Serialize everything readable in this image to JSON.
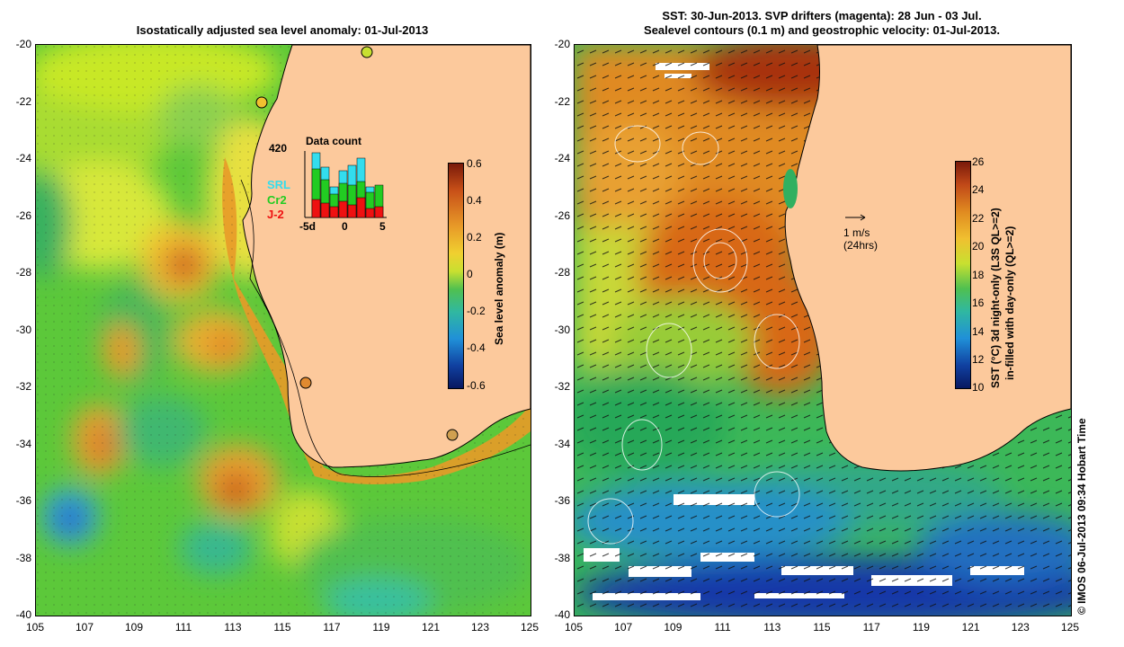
{
  "left": {
    "title": "Isostatically adjusted sea level anomaly: 01-Jul-2013",
    "colorbar": {
      "label": "Sea level anomaly (m)",
      "ticks": [
        "0.6",
        "0.4",
        "0.2",
        "0",
        "-0.2",
        "-0.4",
        "-0.6"
      ]
    },
    "inset": {
      "title": "Data count",
      "max_label": "420",
      "x_labels": [
        "-5d",
        "0",
        "5"
      ],
      "legend": [
        {
          "label": "SRL",
          "color": "#33ddee"
        },
        {
          "label": "Cr2",
          "color": "#22cc22"
        },
        {
          "label": "J-2",
          "color": "#ee1111"
        }
      ]
    }
  },
  "right": {
    "title_line1": "SST: 30-Jun-2013. SVP drifters (magenta): 28 Jun - 03 Jul.",
    "title_line2": "Sealevel contours (0.1 m) and geostrophic velocity: 01-Jul-2013.",
    "colorbar": {
      "label_line1": "SST (°C) 3d night-only (L3S QL>=2)",
      "label_line2": "in-filled with day-only (QL>=2)",
      "ticks": [
        "26",
        "24",
        "22",
        "20",
        "18",
        "16",
        "14",
        "12",
        "10"
      ]
    },
    "vector_scale": {
      "speed": "1 m/s",
      "time": "(24hrs)"
    }
  },
  "axes": {
    "lat_ticks": [
      "-20",
      "-22",
      "-24",
      "-26",
      "-28",
      "-30",
      "-32",
      "-34",
      "-36",
      "-38",
      "-40"
    ],
    "lon_ticks": [
      "105",
      "107",
      "109",
      "111",
      "113",
      "115",
      "117",
      "119",
      "121",
      "123",
      "125"
    ]
  },
  "credit": "© IMOS 06-Jul-2013 09:34 Hobart Time",
  "colors": {
    "land": "#fcc99c",
    "accent_sla": "#e08a20",
    "accent_sst": "#c0501a"
  }
}
